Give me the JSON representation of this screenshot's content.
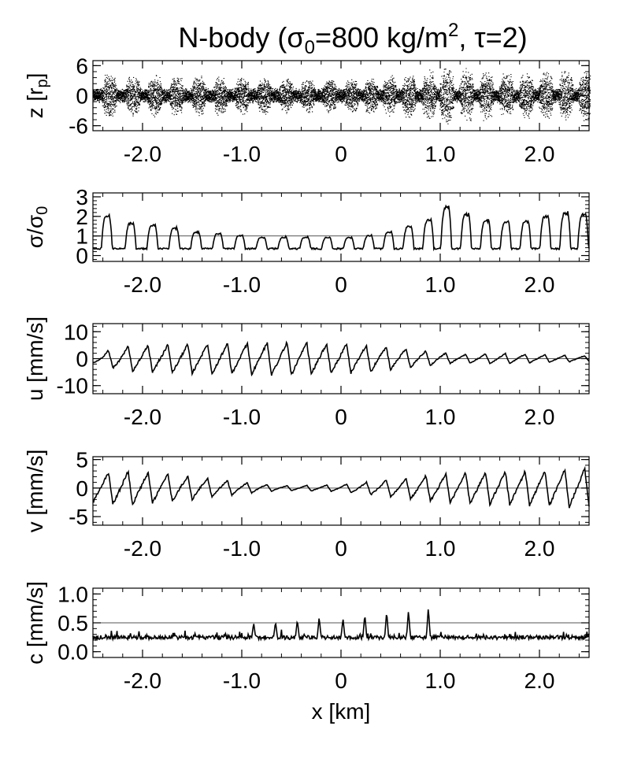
{
  "title_parts": {
    "pre": "N-body (σ",
    "sub": "0",
    "mid": "=800 kg/m",
    "sup": "2",
    "post": ", τ=2)"
  },
  "xlabel": "x [km]",
  "chart_data": [
    {
      "type": "scatter",
      "ylabel_parts": {
        "pre": "z [r",
        "sub": "p",
        "post": "]"
      },
      "xlim": [
        -2.5,
        2.5
      ],
      "ylim": [
        -7,
        7
      ],
      "xticks": [
        -2.0,
        -1.0,
        0,
        1.0,
        2.0
      ],
      "xtick_labels": [
        "-2.0",
        "-1.0",
        "0",
        "1.0",
        "2.0"
      ],
      "yticks": [
        -6,
        0,
        6
      ],
      "ytick_labels": [
        "-6",
        "0",
        "6"
      ],
      "band_half_thickness": 1.5,
      "clump_x": [
        -2.34,
        -2.1,
        -1.88,
        -1.66,
        -1.44,
        -1.22,
        -1.0,
        -0.78,
        -0.56,
        -0.34,
        -0.12,
        0.1,
        0.3,
        0.48,
        0.68,
        0.88,
        1.06,
        1.26,
        1.46,
        1.66,
        1.86,
        2.06,
        2.26,
        2.46
      ],
      "clump_height": [
        5.0,
        4.5,
        4.4,
        4.3,
        4.2,
        4.1,
        4.0,
        3.9,
        3.8,
        3.7,
        3.6,
        3.6,
        3.8,
        4.2,
        4.6,
        5.2,
        6.0,
        5.5,
        5.2,
        5.0,
        5.0,
        5.2,
        5.5,
        5.3
      ],
      "clump_halfwidth": 0.08
    },
    {
      "type": "line",
      "ylabel_parts": {
        "pre": "σ/σ",
        "sub": "0"
      },
      "xlim": [
        -2.5,
        2.5
      ],
      "ylim": [
        -0.3,
        3.2
      ],
      "xticks": [
        -2.0,
        -1.0,
        0,
        1.0,
        2.0
      ],
      "xtick_labels": [
        "-2.0",
        "-1.0",
        "0",
        "1.0",
        "2.0"
      ],
      "yticks": [
        0,
        1,
        2,
        3
      ],
      "ytick_labels": [
        "0",
        "1",
        "2",
        "3"
      ],
      "ref_line": 1,
      "wave_type": "plateau",
      "wave_centers": [
        -2.36,
        -2.12,
        -1.9,
        -1.68,
        -1.46,
        -1.24,
        -1.02,
        -0.8,
        -0.58,
        -0.36,
        -0.14,
        0.08,
        0.28,
        0.48,
        0.68,
        0.88,
        1.06,
        1.26,
        1.46,
        1.66,
        1.86,
        2.06,
        2.26,
        2.44
      ],
      "wave_peaks": [
        2.2,
        1.8,
        1.7,
        1.5,
        1.3,
        1.2,
        1.1,
        1.0,
        1.0,
        1.0,
        1.0,
        1.0,
        1.1,
        1.3,
        1.6,
        2.0,
        2.7,
        2.3,
        2.0,
        1.9,
        1.9,
        2.2,
        2.4,
        2.3
      ],
      "baseline": 0.35
    },
    {
      "type": "line",
      "ylabel": "u [mm/s]",
      "xlim": [
        -2.5,
        2.5
      ],
      "ylim": [
        -13,
        13
      ],
      "xticks": [
        -2.0,
        -1.0,
        0,
        1.0,
        2.0
      ],
      "xtick_labels": [
        "-2.0",
        "-1.0",
        "0",
        "1.0",
        "2.0"
      ],
      "yticks": [
        -10,
        0,
        10
      ],
      "ytick_labels": [
        "-10",
        "0",
        "10"
      ],
      "ref_line": 0,
      "wave_type": "sawtooth",
      "period_km": 0.2,
      "amplitude_points": [
        [
          -2.5,
          1.5
        ],
        [
          -2.2,
          4.5
        ],
        [
          -1.5,
          5.5
        ],
        [
          -0.5,
          6.0
        ],
        [
          0.3,
          5.0
        ],
        [
          0.8,
          3.0
        ],
        [
          1.2,
          1.5
        ],
        [
          1.6,
          2.0
        ],
        [
          2.0,
          1.5
        ],
        [
          2.5,
          1.0
        ]
      ]
    },
    {
      "type": "line",
      "ylabel": "v [mm/s]",
      "xlim": [
        -2.5,
        2.5
      ],
      "ylim": [
        -6.5,
        5.5
      ],
      "xticks": [
        -2.0,
        -1.0,
        0,
        1.0,
        2.0
      ],
      "xtick_labels": [
        "-2.0",
        "-1.0",
        "0",
        "1.0",
        "2.0"
      ],
      "yticks": [
        -5,
        0,
        5
      ],
      "ytick_labels": [
        "-5",
        "0",
        "5"
      ],
      "ref_line": 0,
      "wave_type": "sawtooth",
      "period_km": 0.2,
      "amplitude_points": [
        [
          -2.5,
          2.5
        ],
        [
          -2.2,
          3.0
        ],
        [
          -1.6,
          2.2
        ],
        [
          -1.0,
          1.0
        ],
        [
          -0.6,
          0.4
        ],
        [
          0.0,
          0.6
        ],
        [
          0.5,
          1.5
        ],
        [
          1.0,
          2.5
        ],
        [
          1.5,
          2.8
        ],
        [
          2.0,
          3.0
        ],
        [
          2.5,
          3.4
        ]
      ]
    },
    {
      "type": "line",
      "ylabel": "c [mm/s]",
      "xlim": [
        -2.5,
        2.5
      ],
      "ylim": [
        -0.1,
        1.1
      ],
      "xticks": [
        -2.0,
        -1.0,
        0,
        1.0,
        2.0
      ],
      "xtick_labels": [
        "-2.0",
        "-1.0",
        "0",
        "1.0",
        "2.0"
      ],
      "yticks": [
        0.0,
        0.5,
        1.0
      ],
      "ytick_labels": [
        "0.0",
        "0.5",
        "1.0"
      ],
      "ref_line": 0.5,
      "wave_type": "noise",
      "baseline": 0.24,
      "noise_amp": 0.07,
      "spikes": [
        [
          -0.88,
          0.5
        ],
        [
          -0.66,
          0.52
        ],
        [
          -0.44,
          0.55
        ],
        [
          -0.22,
          0.6
        ],
        [
          0.02,
          0.58
        ],
        [
          0.24,
          0.65
        ],
        [
          0.46,
          0.7
        ],
        [
          0.68,
          0.72
        ],
        [
          0.88,
          0.77
        ]
      ]
    }
  ]
}
